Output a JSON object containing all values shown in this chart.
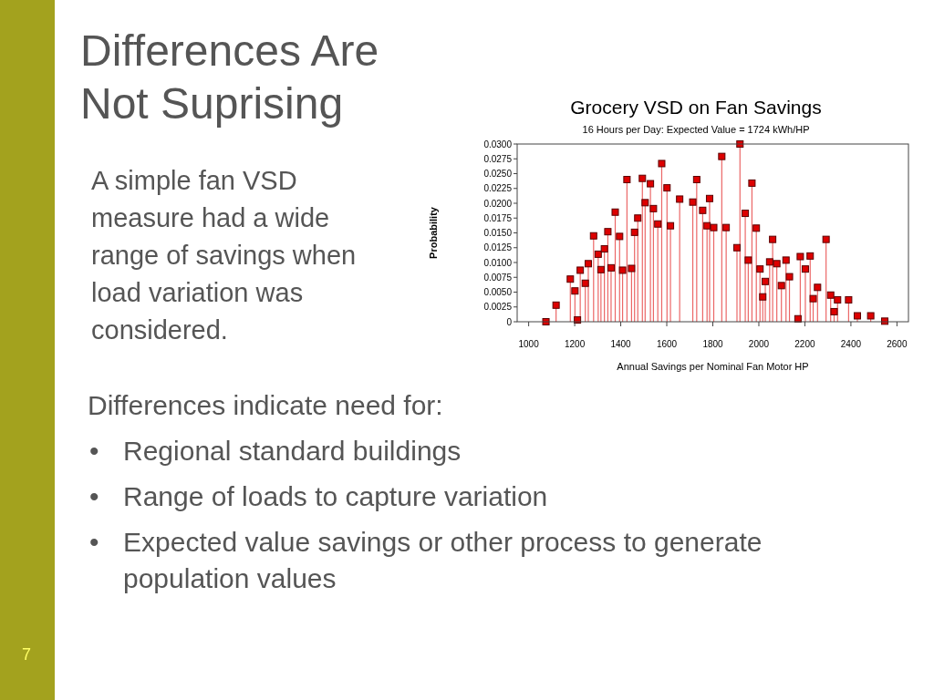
{
  "chart_data": {
    "type": "lollipop",
    "title": "Grocery VSD on Fan Savings",
    "subtitle": "16 Hours per Day: Expected Value = 1724 kWh/HP",
    "xlabel": "Annual Savings per Nominal Fan Motor HP",
    "ylabel": "Probability",
    "annotations": [
      "Differences Are\nNot Suprising",
      "A simple fan VSD\nmeasure had a wide\nrange of savings when\nload variation was\nconsidered.",
      "Differences indicate need for:",
      "•\tRegional standard buildings",
      "•\tRange of loads to capture variation",
      "•\tExpected value savings or other process to generate\npopulation values",
      "7"
    ],
    "x": [
      1075,
      1119,
      1181,
      1201,
      1212,
      1224,
      1246,
      1259,
      1282,
      1302,
      1314,
      1329,
      1344,
      1358,
      1376,
      1395,
      1408,
      1427,
      1447,
      1460,
      1474,
      1494,
      1506,
      1529,
      1542,
      1561,
      1578,
      1601,
      1616,
      1656,
      1713,
      1730,
      1756,
      1775,
      1786,
      1804,
      1839,
      1858,
      1905,
      1918,
      1941,
      1954,
      1970,
      1989,
      2005,
      2017,
      2028,
      2047,
      2060,
      2078,
      2098,
      2118,
      2133,
      2170,
      2180,
      2202,
      2223,
      2236,
      2255,
      2292,
      2312,
      2327,
      2342,
      2390,
      2428,
      2486,
      2547
    ],
    "values": [
      0,
      0.0028,
      0.0072,
      0.0052,
      0.0003,
      0.0087,
      0.0065,
      0.0098,
      0.0145,
      0.0114,
      0.0088,
      0.0123,
      0.0152,
      0.0091,
      0.0185,
      0.0144,
      0.0087,
      0.024,
      0.009,
      0.0151,
      0.0175,
      0.0242,
      0.0201,
      0.0233,
      0.0191,
      0.0165,
      0.0267,
      0.0226,
      0.0162,
      0.0207,
      0.0202,
      0.024,
      0.0188,
      0.0162,
      0.0208,
      0.0159,
      0.0279,
      0.0159,
      0.0125,
      0.03,
      0.0183,
      0.0104,
      0.0234,
      0.0158,
      0.0089,
      0.0042,
      0.0068,
      0.0101,
      0.0139,
      0.0098,
      0.0061,
      0.0104,
      0.0076,
      0.0005,
      0.011,
      0.0089,
      0.0111,
      0.0039,
      0.0058,
      0.0139,
      0.0045,
      0.0017,
      0.0037,
      0.0037,
      0.001,
      0.001,
      0.0001
    ],
    "color": "#dd0000",
    "marker": "square",
    "xlim": [
      950,
      2650
    ],
    "ylim": [
      0,
      0.03
    ],
    "xticks": [
      1000,
      1200,
      1400,
      1600,
      1800,
      2000,
      2200,
      2400,
      2600
    ],
    "yticks": [
      0,
      {
        "value": 0.0025,
        "label": "0.0025"
      },
      {
        "value": 0.005,
        "label": "0.0050"
      },
      {
        "value": 0.0075,
        "label": "0.0075"
      },
      {
        "value": 0.01,
        "label": "0.0100"
      },
      {
        "value": 0.0125,
        "label": "0.0125"
      },
      {
        "value": 0.015,
        "label": "0.0150"
      },
      {
        "value": 0.0175,
        "label": "0.0175"
      },
      {
        "value": 0.02,
        "label": "0.0200"
      },
      {
        "value": 0.0225,
        "label": "0.0225"
      },
      {
        "value": 0.025,
        "label": "0.0250"
      },
      {
        "value": 0.0275,
        "label": "0.0275"
      },
      {
        "value": 0.03,
        "label": "0.0300"
      }
    ],
    "grid": false
  }
}
